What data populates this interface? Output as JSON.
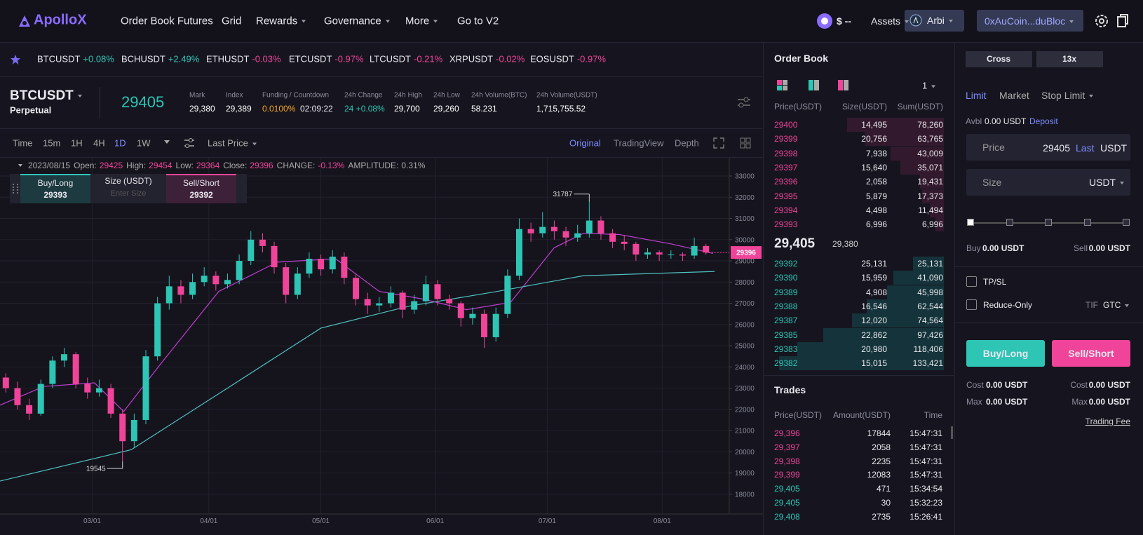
{
  "header": {
    "logo": "ApolloX",
    "nav": [
      "Order Book Futures",
      "Grid",
      "Rewards",
      "Governance",
      "More",
      "Go to V2"
    ],
    "balance": "$ --",
    "assets": "Assets",
    "network": "Arbi",
    "wallet": "0xAuCoin...duBloc"
  },
  "tickers": [
    {
      "symbol": "BTCUSDT",
      "change": "+0.08%"
    },
    {
      "symbol": "BCHUSDT",
      "change": "+2.49%"
    },
    {
      "symbol": "ETHUSDT",
      "change": "-0.03%"
    },
    {
      "symbol": "ETCUSDT",
      "change": "-0.97%"
    },
    {
      "symbol": "LTCUSDT",
      "change": "-0.21%"
    },
    {
      "symbol": "XRPUSDT",
      "change": "-0.02%"
    },
    {
      "symbol": "EOSUSDT",
      "change": "-0.97%"
    }
  ],
  "symbol": {
    "name": "BTCUSDT",
    "sub": "Perpetual",
    "price": "29405",
    "stats": [
      {
        "label": "Mark",
        "value": "29,380"
      },
      {
        "label": "Index",
        "value": "29,389"
      },
      {
        "label": "Funding / Countdown",
        "value": "0.0100%",
        "extra": "02:09:22",
        "color": "#f5a623"
      },
      {
        "label": "24h Change",
        "value": "24 +0.08%",
        "color": "#2ec5b5"
      },
      {
        "label": "24h High",
        "value": "29,700"
      },
      {
        "label": "24h Low",
        "value": "29,260"
      },
      {
        "label": "24h Volume(BTC)",
        "value": "58.231"
      },
      {
        "label": "24h Volume(USDT)",
        "value": "1,715,755.52"
      }
    ]
  },
  "toolbar": {
    "intervals": [
      "Time",
      "15m",
      "1H",
      "4H",
      "1D",
      "1W"
    ],
    "active": "1D",
    "price_type": "Last Price",
    "views": [
      "Original",
      "TradingView",
      "Depth"
    ]
  },
  "quick_trade": {
    "buy": "Buy/Long",
    "buy_price": "29393",
    "size": "Size (USDT)",
    "size_placeholder": "Enter Size",
    "sell": "Sell/Short",
    "sell_price": "29392"
  },
  "chart_data": {
    "type": "candlestick",
    "date": "2023/08/15",
    "info": [
      {
        "label": "Open:",
        "value": "29425"
      },
      {
        "label": "High:",
        "value": "29454"
      },
      {
        "label": "Low:",
        "value": "29364"
      },
      {
        "label": "Close:",
        "value": "29396"
      },
      {
        "label": "CHANGE:",
        "value": "-0.13%"
      },
      {
        "label": "AMPLITUDE:",
        "value": "0.31%"
      }
    ],
    "up_color": "#2ec5b5",
    "down_color": "#f0449a",
    "xlim": [
      -0.5,
      62
    ],
    "xticks": [
      {
        "value": 7.4,
        "label": "03/01"
      },
      {
        "value": 17.4,
        "label": "04/01"
      },
      {
        "value": 27,
        "label": "05/01"
      },
      {
        "value": 36.8,
        "label": "06/01"
      },
      {
        "value": 46.4,
        "label": "07/01"
      },
      {
        "value": 56.25,
        "label": "08/01"
      }
    ],
    "ylim": [
      17070,
      33860
    ],
    "yticks": [
      18000,
      19000,
      20000,
      21000,
      22000,
      23000,
      24000,
      25000,
      26000,
      27000,
      28000,
      29000,
      30000,
      31000,
      32000,
      33000
    ],
    "grid": true,
    "candles": [
      [
        23500,
        23700,
        22800,
        23000
      ],
      [
        23000,
        23300,
        22000,
        22200
      ],
      [
        22200,
        22500,
        21500,
        21800
      ],
      [
        21800,
        23400,
        21700,
        23200
      ],
      [
        23200,
        24500,
        23000,
        24300
      ],
      [
        24300,
        24900,
        24000,
        24600
      ],
      [
        24600,
        24700,
        23000,
        23200
      ],
      [
        23200,
        23500,
        22500,
        22800
      ],
      [
        22800,
        23400,
        22600,
        23000
      ],
      [
        23000,
        23200,
        21600,
        21800
      ],
      [
        21800,
        22000,
        19545,
        20500
      ],
      [
        20500,
        21800,
        20200,
        21500
      ],
      [
        21500,
        24800,
        21300,
        24500
      ],
      [
        24500,
        27300,
        24300,
        27000
      ],
      [
        27000,
        28300,
        26700,
        27800
      ],
      [
        27800,
        28100,
        27000,
        27400
      ],
      [
        27400,
        28400,
        27200,
        28000
      ],
      [
        28000,
        28700,
        27800,
        28300
      ],
      [
        28300,
        28500,
        27600,
        27900
      ],
      [
        27900,
        28400,
        27700,
        28100
      ],
      [
        28100,
        29300,
        27900,
        29000
      ],
      [
        29000,
        30400,
        28800,
        30000
      ],
      [
        30000,
        30300,
        29400,
        29700
      ],
      [
        29700,
        29900,
        28400,
        28700
      ],
      [
        28700,
        28900,
        27000,
        27400
      ],
      [
        27400,
        28700,
        27200,
        28400
      ],
      [
        28400,
        29400,
        28200,
        29100
      ],
      [
        29100,
        29300,
        28300,
        28600
      ],
      [
        28600,
        29500,
        28400,
        29200
      ],
      [
        29200,
        29400,
        27900,
        28200
      ],
      [
        28200,
        28400,
        26900,
        27200
      ],
      [
        27200,
        27500,
        26500,
        26900
      ],
      [
        26900,
        27300,
        26600,
        27000
      ],
      [
        27000,
        27800,
        26800,
        27500
      ],
      [
        27500,
        27600,
        26300,
        26700
      ],
      [
        26700,
        27400,
        26500,
        27100
      ],
      [
        27100,
        28300,
        26900,
        27900
      ],
      [
        27900,
        28100,
        26900,
        27200
      ],
      [
        27200,
        27400,
        26700,
        27000
      ],
      [
        27000,
        27100,
        25900,
        26300
      ],
      [
        26300,
        26800,
        26000,
        26500
      ],
      [
        26500,
        26700,
        24900,
        25400
      ],
      [
        25400,
        26800,
        25200,
        26500
      ],
      [
        26500,
        28600,
        26300,
        28300
      ],
      [
        28300,
        31000,
        28100,
        30500
      ],
      [
        30500,
        30800,
        29900,
        30300
      ],
      [
        30300,
        31300,
        30100,
        30600
      ],
      [
        30600,
        30900,
        30000,
        30400
      ],
      [
        30400,
        30600,
        29700,
        30100
      ],
      [
        30100,
        30700,
        29900,
        30300
      ],
      [
        30300,
        31787,
        30100,
        30900
      ],
      [
        30900,
        31100,
        30000,
        30300
      ],
      [
        30300,
        30500,
        29600,
        29900
      ],
      [
        29900,
        30200,
        29500,
        29800
      ],
      [
        29800,
        29900,
        29000,
        29300
      ],
      [
        29300,
        29600,
        29100,
        29400
      ],
      [
        29400,
        29500,
        29000,
        29300
      ],
      [
        29300,
        29500,
        29100,
        29300
      ],
      [
        29300,
        29400,
        29000,
        29250
      ],
      [
        29250,
        30100,
        29100,
        29700
      ],
      [
        29700,
        29800,
        29300,
        29396
      ]
    ],
    "lines": [
      {
        "color": "#c03fd0",
        "x": [
          -0.5,
          3.25,
          7.6,
          10.1,
          13.25,
          18.25,
          23.25,
          28.25,
          32,
          35.75,
          39.5,
          43.25,
          47,
          49.5,
          52.6,
          57,
          60.6
        ],
        "values": [
          22200,
          23080,
          23250,
          21900,
          24130,
          27560,
          28940,
          29100,
          27560,
          27200,
          26700,
          27040,
          29620,
          30300,
          30240,
          29800,
          29350
        ]
      },
      {
        "color": "#4fc1c0",
        "x": [
          -0.5,
          10.75,
          18.25,
          27,
          34.5,
          42,
          49.5,
          60.75
        ],
        "values": [
          18620,
          20100,
          22740,
          25830,
          26860,
          27550,
          28300,
          28500
        ]
      }
    ]
  },
  "order_book": {
    "title": "Order Book",
    "depth": "1",
    "columns": [
      "Price(USDT)",
      "Size(USDT)",
      "Sum(USDT)"
    ],
    "asks": [
      {
        "price": 29400,
        "size": "14,495",
        "sum": {
          "value": 78260,
          "label": "78,260"
        }
      },
      {
        "price": 29399,
        "size": "20,756",
        "sum": {
          "value": 63765,
          "label": "63,765"
        }
      },
      {
        "price": 29398,
        "size": "7,938",
        "sum": {
          "value": 43009,
          "label": "43,009"
        }
      },
      {
        "price": 29397,
        "size": "15,640",
        "sum": {
          "value": 35071,
          "label": "35,071"
        }
      },
      {
        "price": 29396,
        "size": "2,058",
        "sum": {
          "value": 19431,
          "label": "19,431"
        }
      },
      {
        "price": 29395,
        "size": "5,879",
        "sum": {
          "value": 17373,
          "label": "17,373"
        }
      },
      {
        "price": 29394,
        "size": "4,498",
        "sum": {
          "value": 11494,
          "label": "11,494"
        }
      },
      {
        "price": 29393,
        "size": "6,996",
        "sum": {
          "value": 6996,
          "label": "6,996"
        }
      }
    ],
    "last_price": "29,405",
    "mark": "29,380",
    "bids": [
      {
        "price": 29392,
        "size": "25,131",
        "sum": {
          "value": 25131,
          "label": "25,131"
        }
      },
      {
        "price": 29390,
        "size": "15,959",
        "sum": {
          "value": 41090,
          "label": "41,090"
        }
      },
      {
        "price": 29389,
        "size": "4,908",
        "sum": {
          "value": 45998,
          "label": "45,998"
        }
      },
      {
        "price": 29388,
        "size": "16,546",
        "sum": {
          "value": 62544,
          "label": "62,544"
        }
      },
      {
        "price": 29387,
        "size": "12,020",
        "sum": {
          "value": 74564,
          "label": "74,564"
        }
      },
      {
        "price": 29385,
        "size": "22,862",
        "sum": {
          "value": 97426,
          "label": "97,426"
        }
      },
      {
        "price": 29383,
        "size": "20,980",
        "sum": {
          "value": 118406,
          "label": "118,406"
        }
      },
      {
        "price": 29382,
        "size": "15,015",
        "sum": {
          "value": 133421,
          "label": "133,421"
        }
      }
    ]
  },
  "trades": {
    "title": "Trades",
    "columns": [
      "Price(USDT)",
      "Amount(USDT)",
      "Time"
    ],
    "rows": [
      {
        "price": "29,396",
        "amount": "17844",
        "time": "15:47:31",
        "color": "#f0449a"
      },
      {
        "price": "29,397",
        "amount": "2058",
        "time": "15:47:31",
        "color": "#f0449a"
      },
      {
        "price": "29,398",
        "amount": "2235",
        "time": "15:47:31",
        "color": "#f0449a"
      },
      {
        "price": "29,399",
        "amount": "12083",
        "time": "15:47:31",
        "color": "#f0449a"
      },
      {
        "price": "29,405",
        "amount": "471",
        "time": "15:34:54",
        "color": "#2ec5b5"
      },
      {
        "price": "29,405",
        "amount": "30",
        "time": "15:32:23",
        "color": "#2ec5b5"
      },
      {
        "price": "29,408",
        "amount": "2735",
        "time": "15:26:41",
        "color": "#2ec5b5"
      }
    ]
  },
  "order_form": {
    "margin": "Cross",
    "leverage": "13x",
    "order_types": [
      "Limit",
      "Market",
      "Stop Limit"
    ],
    "avbl_label": "Avbl",
    "avbl": "0.00 USDT",
    "deposit": "Deposit",
    "price_label": "Price",
    "price": "29405",
    "last": "Last",
    "unit": "USDT",
    "size_label": "Size",
    "size_unit": "USDT",
    "buy_label": "Buy",
    "buy": "0.00 USDT",
    "sell_label": "Sell",
    "sell": "0.00 USDT",
    "tpsl": "TP/SL",
    "reduce": "Reduce-Only",
    "tif": "TIF",
    "tif_value": "GTC",
    "buy_btn": "Buy/Long",
    "sell_btn": "Sell/Short",
    "cost_label": "Cost",
    "max_label": "Max",
    "buy_cost": "0.00 USDT",
    "buy_max": "0.00 USDT",
    "sell_cost": "0.00 USDT",
    "sell_max": "0.00 USDT",
    "fee": "Trading Fee"
  }
}
